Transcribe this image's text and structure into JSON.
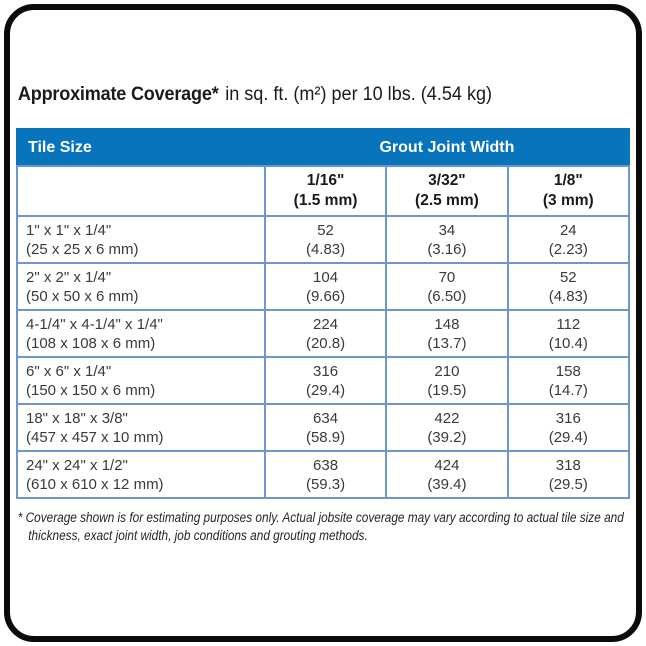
{
  "title": {
    "bold": "Approximate Coverage*",
    "rest": "in sq. ft. (m²) per 10 lbs. (4.54 kg)"
  },
  "table": {
    "tile_size_header": "Tile Size",
    "grout_header": "Grout Joint Width",
    "columns": [
      {
        "width_in": "1/16\"",
        "width_mm": "(1.5 mm)"
      },
      {
        "width_in": "3/32\"",
        "width_mm": "(2.5 mm)"
      },
      {
        "width_in": "1/8\"",
        "width_mm": "(3 mm)"
      }
    ],
    "rows": [
      {
        "size": "1\" x 1\" x 1/4\"",
        "metric": "(25 x 25 x 6 mm)",
        "cells": [
          {
            "sqft": "52",
            "m2": "(4.83)"
          },
          {
            "sqft": "34",
            "m2": "(3.16)"
          },
          {
            "sqft": "24",
            "m2": "(2.23)"
          }
        ]
      },
      {
        "size": "2\" x 2\" x 1/4\"",
        "metric": "(50 x 50 x 6 mm)",
        "cells": [
          {
            "sqft": "104",
            "m2": "(9.66)"
          },
          {
            "sqft": "70",
            "m2": "(6.50)"
          },
          {
            "sqft": "52",
            "m2": "(4.83)"
          }
        ]
      },
      {
        "size": "4-1/4\" x 4-1/4\" x 1/4\"",
        "metric": "(108 x 108 x 6 mm)",
        "cells": [
          {
            "sqft": "224",
            "m2": "(20.8)"
          },
          {
            "sqft": "148",
            "m2": "(13.7)"
          },
          {
            "sqft": "112",
            "m2": "(10.4)"
          }
        ]
      },
      {
        "size": "6\" x 6\" x 1/4\"",
        "metric": "(150 x 150 x 6 mm)",
        "cells": [
          {
            "sqft": "316",
            "m2": "(29.4)"
          },
          {
            "sqft": "210",
            "m2": "(19.5)"
          },
          {
            "sqft": "158",
            "m2": "(14.7)"
          }
        ]
      },
      {
        "size": "18\" x 18\" x 3/8\"",
        "metric": "(457 x 457 x 10 mm)",
        "cells": [
          {
            "sqft": "634",
            "m2": "(58.9)"
          },
          {
            "sqft": "422",
            "m2": "(39.2)"
          },
          {
            "sqft": "316",
            "m2": "(29.4)"
          }
        ]
      },
      {
        "size": "24\" x 24\" x 1/2\"",
        "metric": "(610 x 610 x 12 mm)",
        "cells": [
          {
            "sqft": "638",
            "m2": "(59.3)"
          },
          {
            "sqft": "424",
            "m2": "(39.4)"
          },
          {
            "sqft": "318",
            "m2": "(29.5)"
          }
        ]
      }
    ]
  },
  "footnote": "* Coverage shown is for estimating purposes only. Actual jobsite coverage may vary according to actual tile size and thickness, exact joint width, job conditions and grouting methods.",
  "colors": {
    "header_blue": "#0874bb",
    "grid_blue": "#6c96cc",
    "frame_black": "#0a0a0a"
  }
}
